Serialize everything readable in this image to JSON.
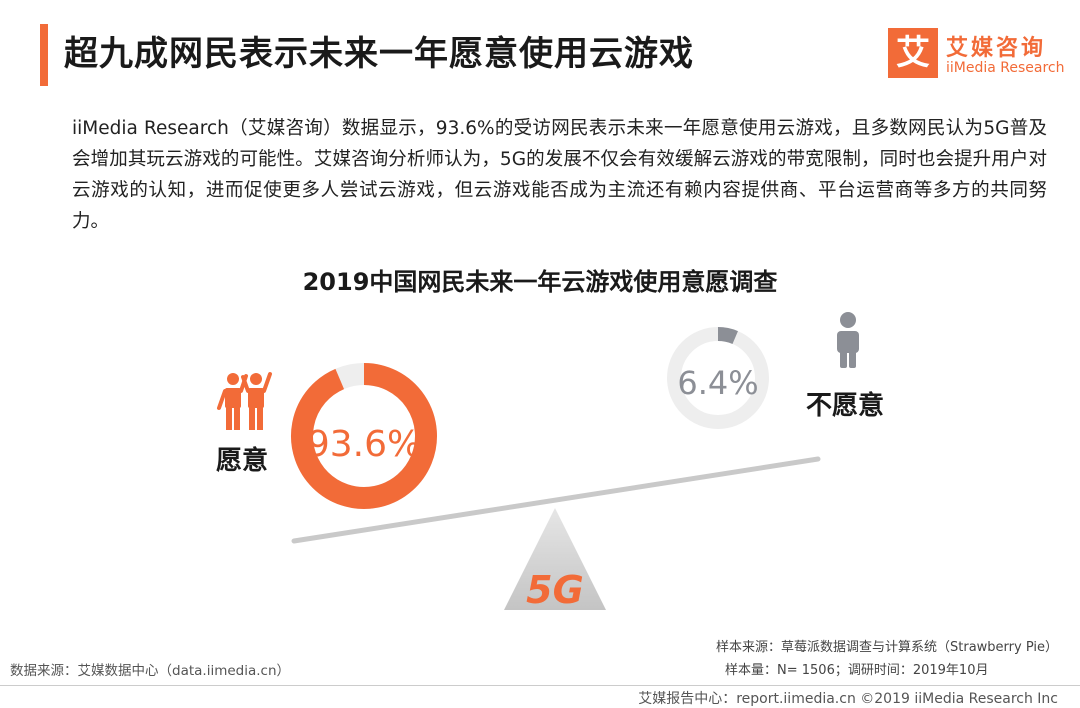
{
  "header": {
    "title": "超九成网民表示未来一年愿意使用云游戏"
  },
  "logo": {
    "mark": "艾",
    "cn": "艾媒咨询",
    "en": "iiMedia Research"
  },
  "description": "iiMedia Research（艾媒咨询）数据显示，93.6%的受访网民表示未来一年愿意使用云游戏，且多数网民认为5G普及会增加其玩云游戏的可能性。艾媒咨询分析师认为，5G的发展不仅会有效缓解云游戏的带宽限制，同时也会提升用户对云游戏的认知，进而促使更多人尝试云游戏，但云游戏能否成为主流还有赖内容提供商、平台运营商等多方的共同努力。",
  "chart_data": {
    "type": "pie",
    "title": "2019中国网民未来一年云游戏使用意愿调查",
    "categories": [
      "愿意",
      "不愿意"
    ],
    "values": [
      93.6,
      6.4
    ],
    "labels": [
      "93.6%",
      "6.4%"
    ],
    "colors": {
      "willing": "#f26b38",
      "unwilling": "#8c8f96",
      "track": "#eeeeee"
    },
    "center_mark": "5G"
  },
  "source": {
    "left": "数据来源：艾媒数据中心（data.iimedia.cn）",
    "right_line1": "样本来源：草莓派数据调查与计算系统（Strawberry Pie）",
    "right_line2": "样本量：N= 1506；调研时间：2019年10月"
  },
  "footer": {
    "text": "艾媒报告中心：report.iimedia.cn ©2019  iiMedia Research  Inc"
  }
}
